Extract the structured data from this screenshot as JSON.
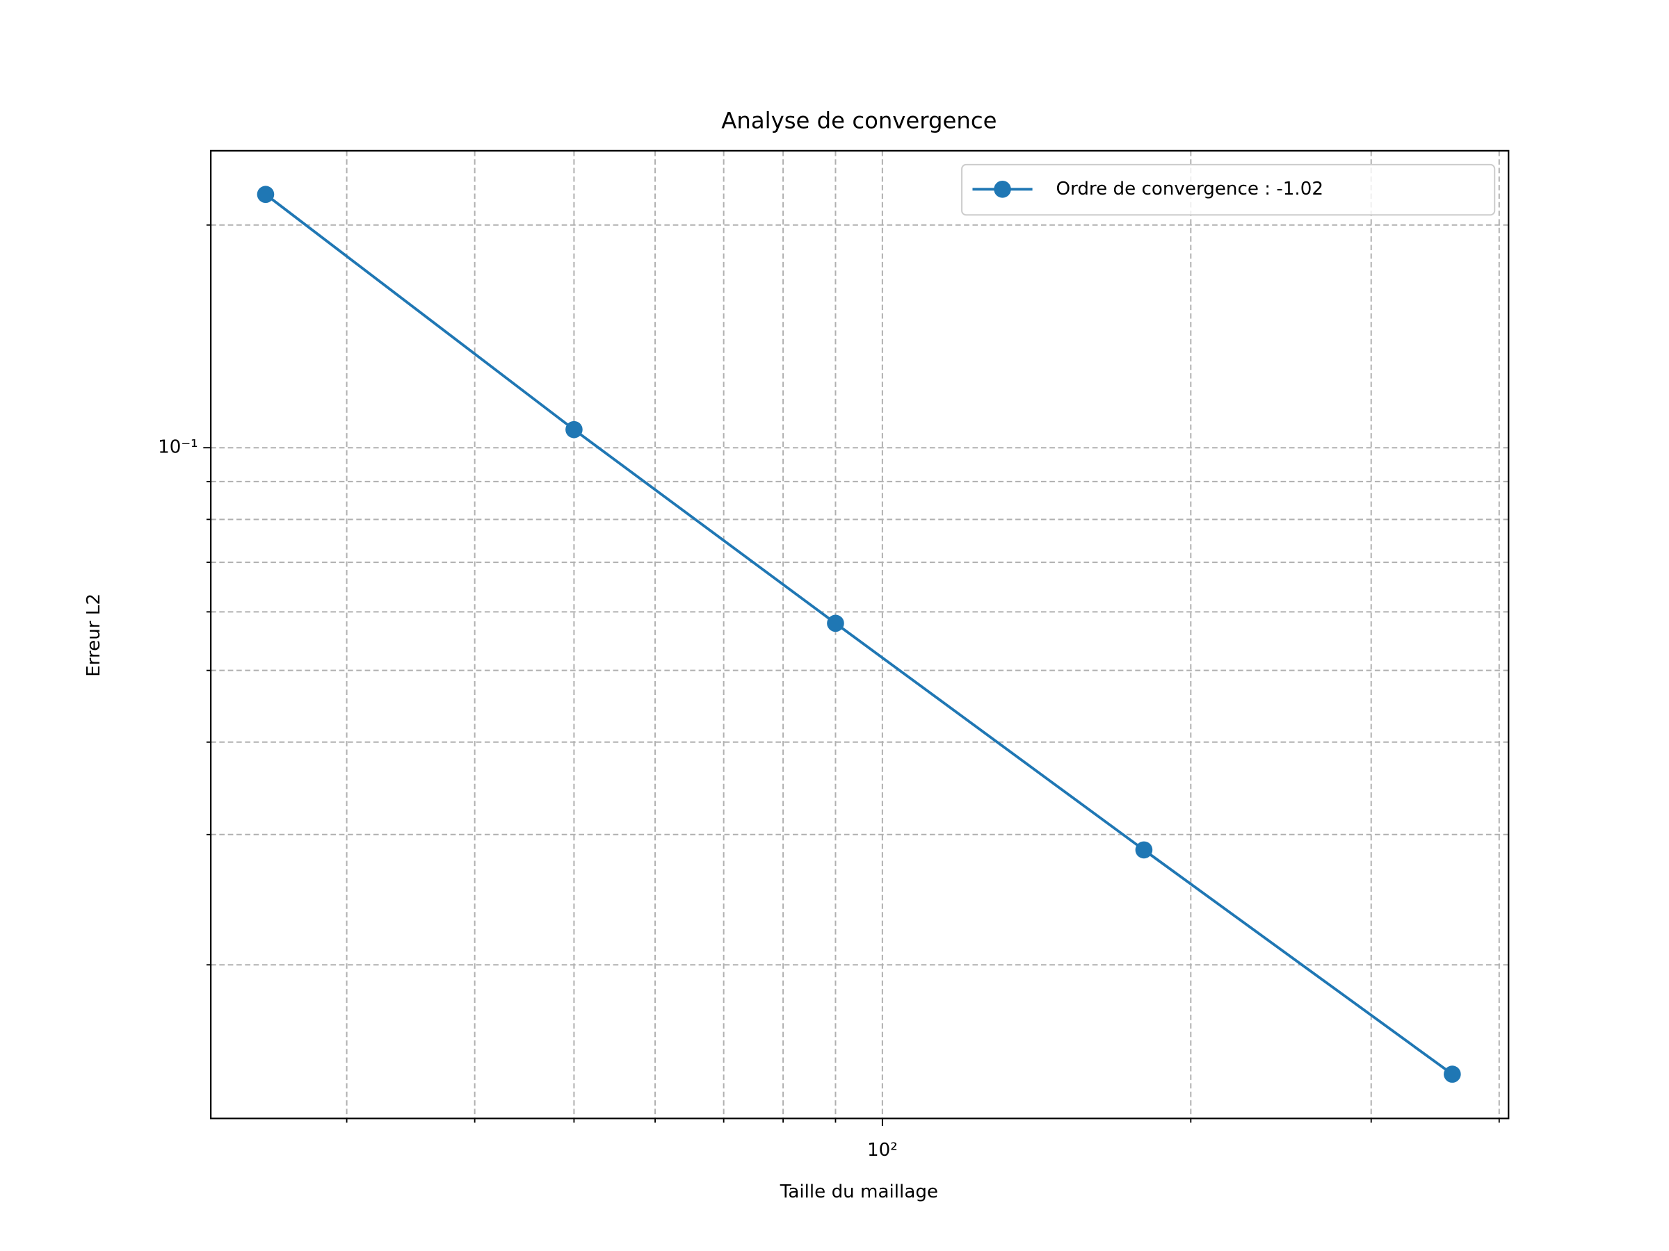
{
  "chart_data": {
    "type": "line",
    "title": "Analyse de convergence",
    "xlabel": "Taille du maillage",
    "ylabel": "Erreur L2",
    "x": [
      25,
      50,
      90,
      180,
      360
    ],
    "series": [
      {
        "name": "Ordre de convergence : -1.02",
        "color": "#1f77b4",
        "values": [
          0.22,
          0.1058,
          0.0579,
          0.0286,
          0.01423
        ]
      }
    ],
    "xscale": "log",
    "yscale": "log",
    "xlim": [
      22.1,
      408.5
    ],
    "ylim": [
      0.0124,
      0.252
    ],
    "xticks": [
      {
        "value": 100,
        "label": "10²"
      }
    ],
    "yticks": [
      {
        "value": 0.1,
        "label": "10⁻¹"
      }
    ],
    "xminorticks": [
      30,
      40,
      50,
      60,
      70,
      80,
      90,
      200,
      300,
      400
    ],
    "yminorticks": [
      0.02,
      0.03,
      0.04,
      0.05,
      0.06,
      0.07,
      0.08,
      0.09,
      0.2
    ],
    "grid": true,
    "legend": "upper right"
  }
}
